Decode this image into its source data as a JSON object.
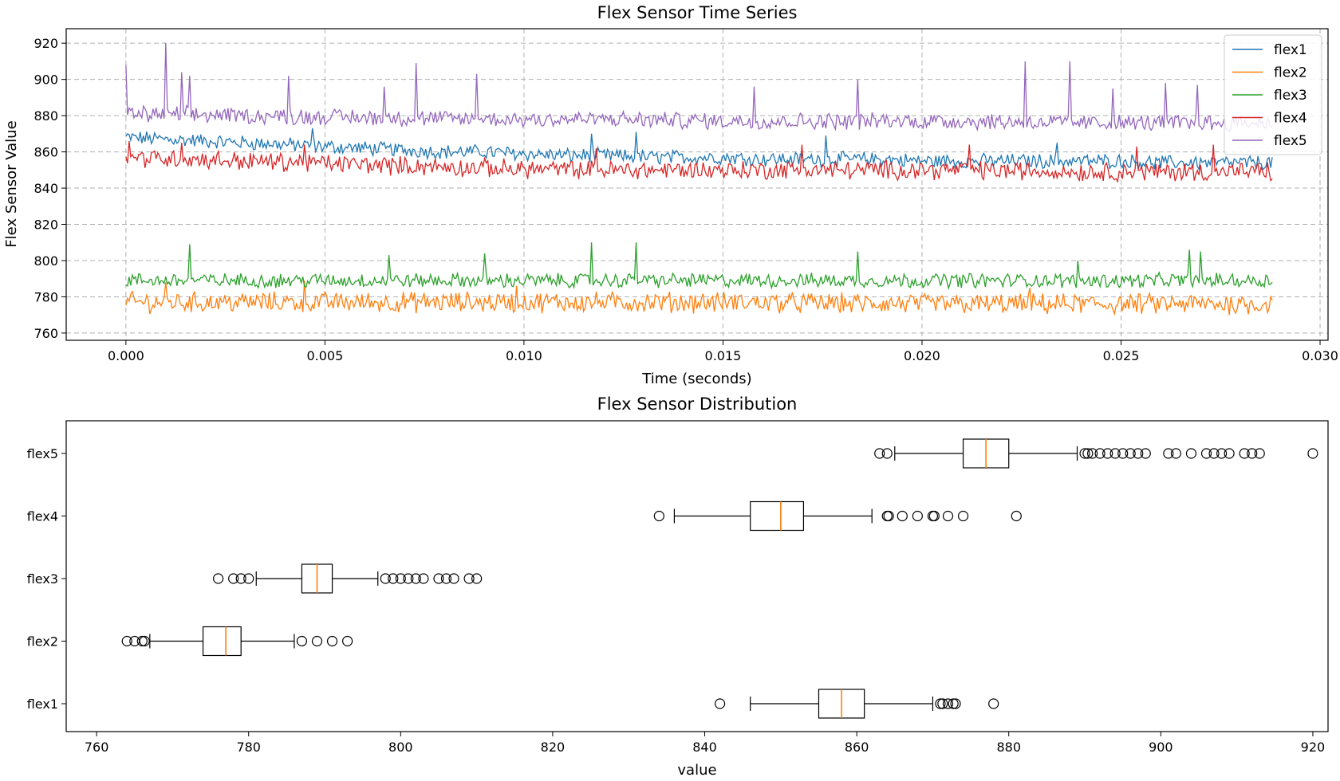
{
  "chart_data": [
    {
      "type": "line",
      "title": "Flex Sensor Time Series",
      "xlabel": "Time (seconds)",
      "ylabel": "Flex Sensor Value",
      "xlim": [
        -0.0015,
        0.0302
      ],
      "ylim": [
        756,
        928
      ],
      "xticks": [
        0.0,
        0.005,
        0.01,
        0.015,
        0.02,
        0.025,
        0.03
      ],
      "xtick_labels": [
        "0.000",
        "0.005",
        "0.010",
        "0.015",
        "0.020",
        "0.025",
        "0.030"
      ],
      "yticks": [
        760,
        780,
        800,
        820,
        840,
        860,
        880,
        900,
        920
      ],
      "grid": true,
      "legend": "top-right",
      "series": [
        {
          "name": "flex1",
          "color": "#1f77b4",
          "x": [
            0,
            0.001,
            0.002,
            0.003,
            0.004,
            0.005,
            0.006,
            0.007,
            0.008,
            0.009,
            0.01,
            0.011,
            0.012,
            0.013,
            0.014,
            0.015,
            0.016,
            0.017,
            0.018,
            0.019,
            0.02,
            0.021,
            0.022,
            0.023,
            0.024,
            0.025,
            0.026,
            0.027,
            0.0288
          ],
          "y": [
            868,
            867,
            866,
            865,
            864,
            863,
            862,
            861,
            860,
            860,
            859,
            858,
            858,
            857,
            857,
            857,
            856,
            856,
            856,
            856,
            855,
            855,
            855,
            855,
            855,
            855,
            854,
            854,
            854
          ],
          "noise": 3.5,
          "spikes": [
            [
              0.0047,
              873
            ],
            [
              0.0117,
              870
            ],
            [
              0.0128,
              871
            ],
            [
              0.0176,
              869
            ],
            [
              0.0234,
              865
            ]
          ]
        },
        {
          "name": "flex2",
          "color": "#ff7f0e",
          "x": [
            0,
            0.005,
            0.01,
            0.015,
            0.02,
            0.025,
            0.0288
          ],
          "y": [
            777,
            777,
            777,
            777,
            776,
            776,
            776
          ],
          "noise": 5,
          "spikes": [
            [
              0.001,
              788
            ],
            [
              0.0045,
              789
            ],
            [
              0.0098,
              786
            ],
            [
              0.0227,
              785
            ]
          ]
        },
        {
          "name": "flex3",
          "color": "#2ca02c",
          "x": [
            0,
            0.005,
            0.01,
            0.015,
            0.02,
            0.025,
            0.0288
          ],
          "y": [
            789,
            789,
            789,
            789,
            789,
            789,
            789
          ],
          "noise": 3.5,
          "spikes": [
            [
              0.0016,
              809
            ],
            [
              0.0066,
              803
            ],
            [
              0.009,
              804
            ],
            [
              0.0117,
              810
            ],
            [
              0.0128,
              810
            ],
            [
              0.0184,
              805
            ],
            [
              0.0239,
              800
            ],
            [
              0.0267,
              806
            ],
            [
              0.027,
              805
            ]
          ]
        },
        {
          "name": "flex4",
          "color": "#d62728",
          "x": [
            0,
            0.003,
            0.006,
            0.009,
            0.012,
            0.015,
            0.018,
            0.021,
            0.024,
            0.027,
            0.0288
          ],
          "y": [
            857,
            855,
            853,
            851,
            850,
            850,
            850,
            850,
            849,
            849,
            849
          ],
          "noise": 4.5,
          "spikes": [
            [
              0.0001,
              866
            ],
            [
              0.0014,
              865
            ],
            [
              0.0045,
              864
            ],
            [
              0.0118,
              862
            ],
            [
              0.017,
              864
            ],
            [
              0.0212,
              864
            ],
            [
              0.0254,
              863
            ],
            [
              0.0273,
              864
            ]
          ]
        },
        {
          "name": "flex5",
          "color": "#9467bd",
          "x": [
            0,
            0.003,
            0.006,
            0.009,
            0.012,
            0.015,
            0.018,
            0.021,
            0.024,
            0.027,
            0.0288
          ],
          "y": [
            881,
            880,
            879,
            878,
            878,
            877,
            877,
            877,
            876,
            876,
            876
          ],
          "noise": 4,
          "spikes": [
            [
              0.0,
              908
            ],
            [
              0.001,
              920
            ],
            [
              0.0014,
              904
            ],
            [
              0.0016,
              902
            ],
            [
              0.0041,
              902
            ],
            [
              0.0065,
              896
            ],
            [
              0.0073,
              909
            ],
            [
              0.0088,
              903
            ],
            [
              0.0158,
              896
            ],
            [
              0.0184,
              900
            ],
            [
              0.0226,
              910
            ],
            [
              0.0237,
              910
            ],
            [
              0.0248,
              895
            ],
            [
              0.0261,
              898
            ],
            [
              0.0269,
              897
            ]
          ]
        }
      ]
    },
    {
      "type": "box",
      "title": "Flex Sensor Distribution",
      "xlabel": "value",
      "xlim": [
        756,
        922
      ],
      "xticks": [
        760,
        780,
        800,
        820,
        840,
        860,
        880,
        900,
        920
      ],
      "categories": [
        "flex1",
        "flex2",
        "flex3",
        "flex4",
        "flex5"
      ],
      "boxes": [
        {
          "name": "flex1",
          "whisker_low": 846,
          "q1": 855,
          "median": 858,
          "q3": 861,
          "whisker_high": 870,
          "outliers": [
            842,
            871,
            871.3,
            872,
            872.7,
            873,
            878
          ]
        },
        {
          "name": "flex2",
          "whisker_low": 767,
          "q1": 774,
          "median": 777,
          "q3": 779,
          "whisker_high": 786,
          "outliers": [
            764,
            765,
            766,
            766.3,
            787,
            789,
            791,
            793
          ]
        },
        {
          "name": "flex3",
          "whisker_low": 781,
          "q1": 787,
          "median": 789,
          "q3": 791,
          "whisker_high": 797,
          "outliers": [
            776,
            778,
            779,
            780,
            798,
            799,
            800,
            801,
            802,
            803,
            805,
            806,
            807,
            809,
            810
          ]
        },
        {
          "name": "flex4",
          "whisker_low": 836,
          "q1": 846,
          "median": 850,
          "q3": 853,
          "whisker_high": 862,
          "outliers": [
            834,
            864,
            864.2,
            866,
            868,
            870,
            870.2,
            872,
            874,
            881
          ]
        },
        {
          "name": "flex5",
          "whisker_low": 865,
          "q1": 874,
          "median": 877,
          "q3": 880,
          "whisker_high": 889,
          "outliers": [
            863,
            864,
            890,
            890.4,
            891,
            892,
            893,
            894,
            895,
            896,
            897,
            898,
            901,
            902,
            904,
            906,
            907,
            908,
            909,
            911,
            912,
            913,
            920
          ]
        }
      ]
    }
  ]
}
